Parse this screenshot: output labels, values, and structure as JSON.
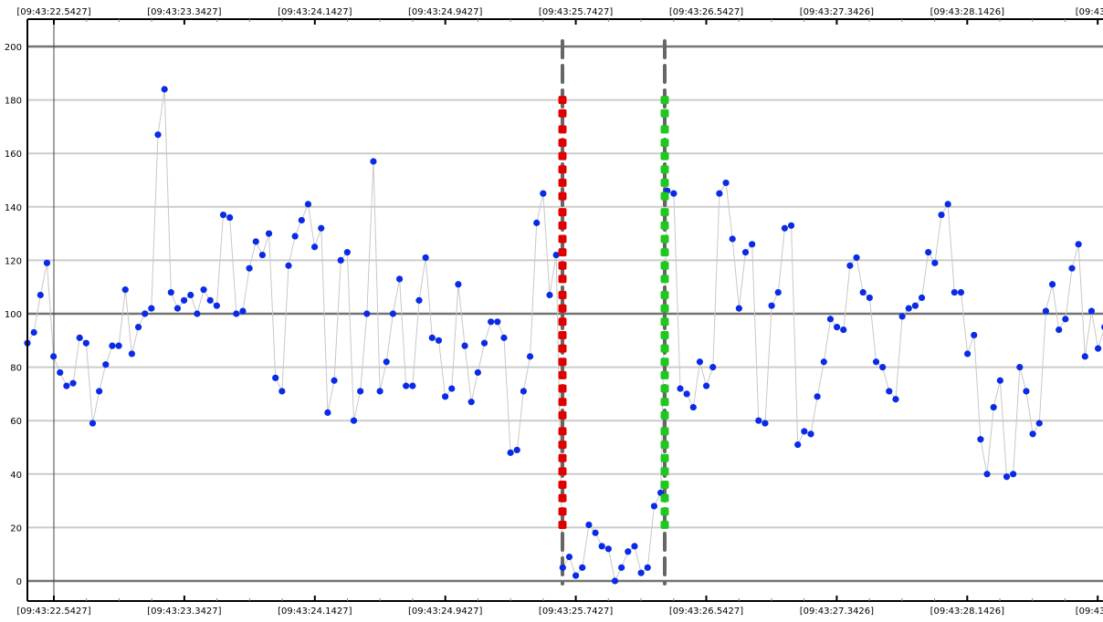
{
  "chart_data": {
    "type": "scatter",
    "title": "",
    "xlabel": "",
    "ylabel": "",
    "x_tick_labels": [
      "[09:43:22.5427]",
      "[09:43:23.3427]",
      "[09:43:24.1427]",
      "[09:43:24.9427]",
      "[09:43:25.7427]",
      "[09:43:26.5427]",
      "[09:43:27.3426]",
      "[09:43:28.1426]",
      "[09:43:28"
    ],
    "y_ticks": [
      0,
      20,
      40,
      60,
      80,
      100,
      120,
      140,
      160,
      180,
      200
    ],
    "ylim": [
      -7,
      210
    ],
    "grid": true,
    "legend": "none",
    "series": [
      {
        "color": "#0a2be6",
        "line_color": "#c8c8c8",
        "values": [
          89,
          93,
          107,
          119,
          84,
          78,
          73,
          74,
          91,
          89,
          59,
          71,
          81,
          88,
          88,
          109,
          85,
          95,
          100,
          102,
          167,
          184,
          108,
          102,
          105,
          107,
          100,
          109,
          105,
          103,
          137,
          136,
          100,
          101,
          117,
          127,
          122,
          130,
          76,
          71,
          118,
          129,
          135,
          141,
          125,
          132,
          63,
          75,
          120,
          123,
          60,
          71,
          100,
          157,
          71,
          82,
          100,
          113,
          73,
          73,
          105,
          121,
          91,
          90,
          69,
          72,
          111,
          88,
          67,
          78,
          89,
          97,
          97,
          91,
          48,
          49,
          71,
          84,
          134,
          145,
          107,
          122,
          5,
          9,
          2,
          5,
          21,
          18,
          13,
          12,
          0,
          5,
          11,
          13,
          3,
          5,
          28,
          33,
          146,
          145,
          72,
          70,
          65,
          82,
          73,
          80,
          145,
          149,
          128,
          102,
          123,
          126,
          60,
          59,
          103,
          108,
          132,
          133,
          51,
          56,
          55,
          69,
          82,
          98,
          95,
          94,
          118,
          121,
          108,
          106,
          82,
          80,
          71,
          68,
          99,
          102,
          103,
          106,
          123,
          119,
          137,
          141,
          108,
          108,
          85,
          92,
          53,
          40,
          65,
          75,
          39,
          40,
          80,
          71,
          55,
          59,
          101,
          111,
          94,
          98,
          117,
          126,
          84,
          101,
          87,
          95
        ]
      }
    ],
    "markers": [
      {
        "color": "#e00000",
        "values": [
          21,
          26,
          31,
          36,
          41,
          46,
          51,
          56,
          62,
          67,
          72,
          77,
          82,
          87,
          92,
          97,
          102,
          107,
          113,
          118,
          123,
          128,
          133,
          138,
          144,
          149,
          154,
          159,
          164,
          169,
          175,
          180
        ]
      },
      {
        "color": "#1ec81e",
        "values": [
          21,
          26,
          31,
          36,
          41,
          46,
          51,
          56,
          62,
          67,
          72,
          77,
          82,
          87,
          92,
          97,
          102,
          107,
          113,
          118,
          123,
          128,
          133,
          138,
          144,
          149,
          154,
          159,
          164,
          169,
          175,
          180
        ]
      }
    ],
    "colors": {
      "major_grid": "#737373",
      "minor_grid": "#cccccc",
      "cursor": "#666666",
      "axis": "#000000"
    }
  }
}
